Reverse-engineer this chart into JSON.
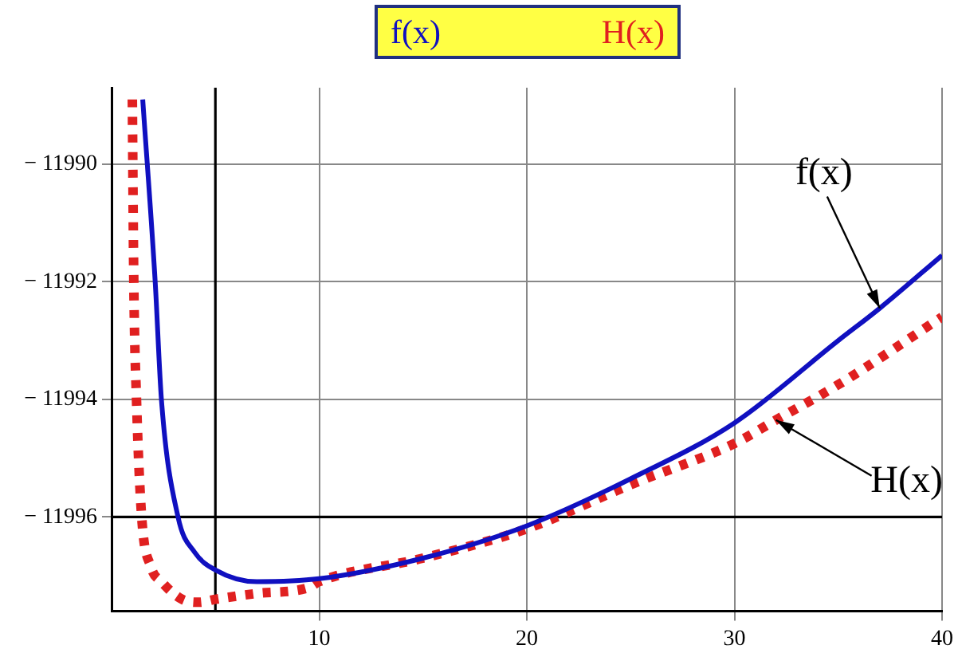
{
  "chart_data": {
    "type": "line",
    "xlim": [
      0,
      40
    ],
    "xticks": [
      10,
      20,
      30,
      40
    ],
    "ylim": [
      -11997.6,
      -11988.7
    ],
    "yticks": [
      -11990,
      -11992,
      -11994,
      -11996
    ],
    "grid": true,
    "legend": "top",
    "marker": "none",
    "series": [
      {
        "name": "f(x)",
        "color": "#1010c0",
        "line_style": "solid",
        "x": [
          1.5,
          2.1,
          2.4,
          3.2,
          4,
          5,
          7,
          10,
          15,
          20,
          25,
          30,
          35,
          37,
          40
        ],
        "values": [
          -11988.9,
          -11992,
          -11994,
          -11996,
          -11996.6,
          -11996.9,
          -11997.1,
          -11997.05,
          -11996.7,
          -11996.15,
          -11995.35,
          -11994.4,
          -11993,
          -11992.45,
          -11991.55
        ]
      },
      {
        "name": "H(x)",
        "color": "#e02020",
        "line_style": "dotted",
        "x": [
          1,
          1.07,
          1.2,
          1.45,
          1.9,
          2.4,
          3.4,
          4.2,
          5,
          7,
          9.5,
          10,
          15,
          20,
          25,
          30,
          32,
          35,
          40
        ],
        "values": [
          -11988.9,
          -11992,
          -11994,
          -11996,
          -11996.85,
          -11997.1,
          -11997.4,
          -11997.45,
          -11997.4,
          -11997.3,
          -11997.2,
          -11997.1,
          -11996.7,
          -11996.2,
          -11995.45,
          -11994.75,
          -11994.35,
          -11993.75,
          -11992.6
        ]
      }
    ],
    "ref_lines": [
      {
        "axis": "x",
        "value": 5
      },
      {
        "axis": "y",
        "value": -11996
      }
    ],
    "annotations": [
      {
        "text": "f(x)",
        "x": 37,
        "y": -11992.45
      },
      {
        "text": "H(x)",
        "x": 32,
        "y": -11994.35
      }
    ]
  }
}
